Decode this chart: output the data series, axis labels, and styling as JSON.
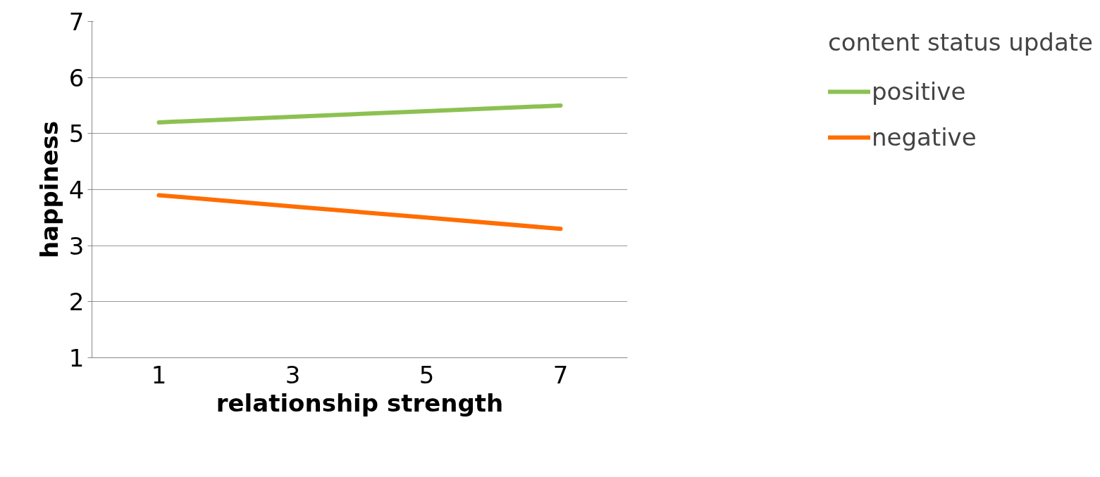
{
  "chart_data": {
    "type": "line",
    "xlabel": "relationship strength",
    "ylabel": "happiness",
    "legend_title": "content status update",
    "categories": [
      "1",
      "3",
      "5",
      "7"
    ],
    "series": [
      {
        "name": "positive",
        "color": "#8cc152",
        "values": [
          5.2,
          5.3,
          5.4,
          5.5
        ]
      },
      {
        "name": "negative",
        "color": "#ff6d00",
        "values": [
          3.9,
          3.7,
          3.5,
          3.3
        ]
      }
    ],
    "ylim": [
      1,
      7
    ],
    "yticks": [
      1,
      2,
      3,
      4,
      5,
      6,
      7
    ],
    "grid": "y",
    "legend": "right",
    "marker": "none",
    "line_style": "solid"
  }
}
